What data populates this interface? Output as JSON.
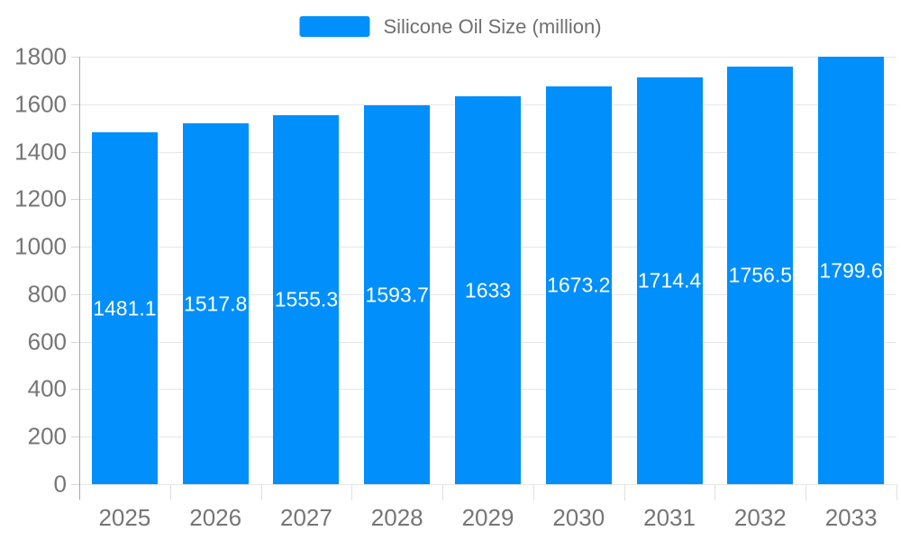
{
  "legend": {
    "label": "Silicone Oil Size (million)",
    "swatch_color": "#008FFB"
  },
  "chart_data": {
    "type": "bar",
    "title": "Silicone Oil Size (million)",
    "categories": [
      "2025",
      "2026",
      "2027",
      "2028",
      "2029",
      "2030",
      "2031",
      "2032",
      "2033"
    ],
    "series": [
      {
        "name": "Silicone Oil Size (million)",
        "values": [
          1481.1,
          1517.8,
          1555.3,
          1593.7,
          1633,
          1673.2,
          1714.4,
          1756.5,
          1799.6
        ]
      }
    ],
    "xlabel": "",
    "ylabel": "",
    "ylim": [
      0,
      1800
    ],
    "ytick_step": 200,
    "grid": true,
    "legend_position": "top",
    "bar_color": "#008FFB",
    "value_label_color": "#ffffff",
    "axis_label_color": "#757575",
    "value_labels_position": "middle"
  }
}
